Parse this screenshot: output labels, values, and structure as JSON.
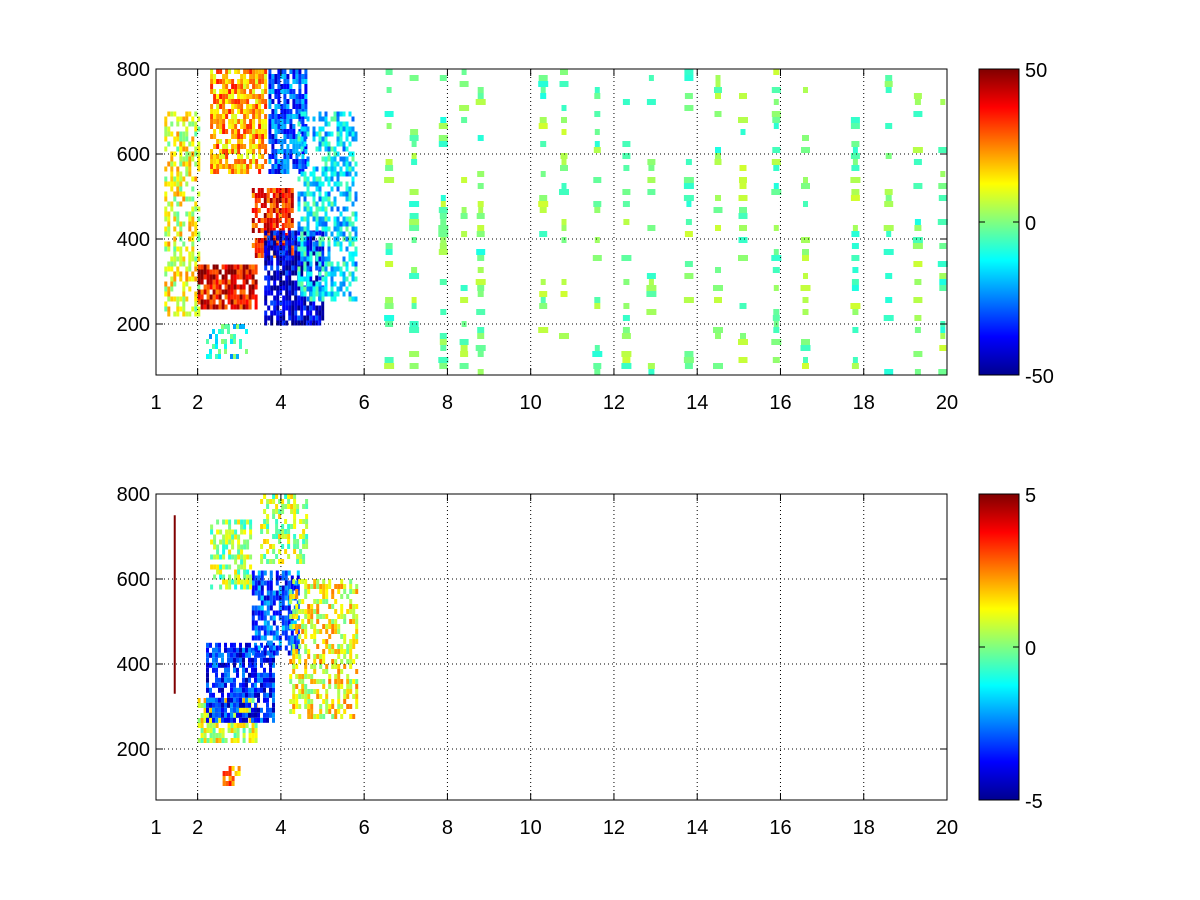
{
  "figure": {
    "background": "#ffffff",
    "colormap": "jet",
    "colormap_stops": [
      "#00008f",
      "#0000ff",
      "#0080ff",
      "#00ffff",
      "#80ff80",
      "#ffff00",
      "#ff8000",
      "#ff0000",
      "#800000"
    ]
  },
  "chart_data": [
    {
      "type": "heatmap",
      "title": "",
      "xlabel": "",
      "ylabel": "",
      "xlim": [
        1,
        20
      ],
      "ylim": [
        80,
        800
      ],
      "x_ticks": [
        1,
        2,
        4,
        6,
        8,
        10,
        12,
        14,
        16,
        18,
        20
      ],
      "x_tick_labels": [
        "1",
        "2",
        "4",
        "6",
        "8",
        "10",
        "12",
        "14",
        "16",
        "18",
        "20"
      ],
      "y_ticks": [
        200,
        400,
        600,
        800
      ],
      "y_tick_labels": [
        "200",
        "400",
        "600",
        "800"
      ],
      "grid": true,
      "colorbar": {
        "clim": [
          -50,
          50
        ],
        "ticks": [
          50,
          0,
          -50
        ],
        "tick_labels": [
          "50",
          "0",
          "-50"
        ]
      },
      "features": [
        {
          "x": [
            1.2,
            2.0
          ],
          "y": [
            220,
            700
          ],
          "value": 10,
          "density": 0.55
        },
        {
          "x": [
            2.3,
            3.6
          ],
          "y": [
            560,
            800
          ],
          "value": 22,
          "density": 0.7
        },
        {
          "x": [
            2.0,
            3.4
          ],
          "y": [
            240,
            340
          ],
          "value": 38,
          "density": 0.8
        },
        {
          "x": [
            3.3,
            4.3
          ],
          "y": [
            360,
            520
          ],
          "value": 35,
          "density": 0.75
        },
        {
          "x": [
            3.6,
            5.0
          ],
          "y": [
            200,
            420
          ],
          "value": -42,
          "density": 0.8
        },
        {
          "x": [
            3.7,
            4.6
          ],
          "y": [
            560,
            800
          ],
          "value": -30,
          "density": 0.75
        },
        {
          "x": [
            4.4,
            5.8
          ],
          "y": [
            260,
            700
          ],
          "value": -15,
          "density": 0.55
        },
        {
          "x": [
            2.2,
            3.2
          ],
          "y": [
            120,
            200
          ],
          "value": -10,
          "density": 0.35
        }
      ],
      "noise_columns": [
        6.6,
        7.2,
        7.9,
        8.4,
        8.8,
        10.3,
        10.8,
        11.6,
        12.3,
        12.9,
        13.8,
        14.5,
        15.1,
        15.9,
        16.6,
        17.8,
        18.6,
        19.3,
        19.9
      ],
      "noise_values": [
        -10,
        8
      ]
    },
    {
      "type": "heatmap",
      "title": "",
      "xlabel": "",
      "ylabel": "",
      "xlim": [
        1,
        20
      ],
      "ylim": [
        80,
        800
      ],
      "x_ticks": [
        1,
        2,
        4,
        6,
        8,
        10,
        12,
        14,
        16,
        18,
        20
      ],
      "x_tick_labels": [
        "1",
        "2",
        "4",
        "6",
        "8",
        "10",
        "12",
        "14",
        "16",
        "18",
        "20"
      ],
      "y_ticks": [
        200,
        400,
        600,
        800
      ],
      "y_tick_labels": [
        "200",
        "400",
        "600",
        "800"
      ],
      "grid": true,
      "colorbar": {
        "clim": [
          -5,
          5
        ],
        "ticks": [
          5,
          0,
          -5
        ],
        "tick_labels": [
          "5",
          "0",
          "-5"
        ]
      },
      "features": [
        {
          "x": [
            2.0,
            3.4
          ],
          "y": [
            220,
            320
          ],
          "value": 0.8,
          "density": 0.75
        },
        {
          "x": [
            2.2,
            3.8
          ],
          "y": [
            270,
            450
          ],
          "value": -3.5,
          "density": 0.75
        },
        {
          "x": [
            3.3,
            4.4
          ],
          "y": [
            420,
            620
          ],
          "value": -3.0,
          "density": 0.7
        },
        {
          "x": [
            2.3,
            3.3
          ],
          "y": [
            580,
            740
          ],
          "value": 0.3,
          "density": 0.6
        },
        {
          "x": [
            3.5,
            4.6
          ],
          "y": [
            640,
            800
          ],
          "value": 0.5,
          "density": 0.55
        },
        {
          "x": [
            4.2,
            5.8
          ],
          "y": [
            280,
            600
          ],
          "value": 1.2,
          "density": 0.5
        },
        {
          "x": [
            2.6,
            3.0
          ],
          "y": [
            120,
            160
          ],
          "value": 2.5,
          "density": 0.5
        }
      ],
      "line_segments": [
        {
          "x": 1.45,
          "y": [
            330,
            750
          ],
          "value": 5
        }
      ]
    }
  ]
}
